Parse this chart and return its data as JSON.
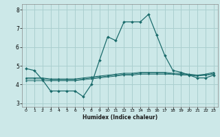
{
  "title": "",
  "xlabel": "Humidex (Indice chaleur)",
  "ylabel": "",
  "background_color": "#cce8e8",
  "grid_color": "#aacfcf",
  "line_color": "#1a6b6b",
  "xlim": [
    -0.5,
    23.5
  ],
  "ylim": [
    2.8,
    8.3
  ],
  "xticks": [
    0,
    1,
    2,
    3,
    4,
    5,
    6,
    7,
    8,
    9,
    10,
    11,
    12,
    13,
    14,
    15,
    16,
    17,
    18,
    19,
    20,
    21,
    22,
    23
  ],
  "yticks": [
    3,
    4,
    5,
    6,
    7,
    8
  ],
  "series1": {
    "x": [
      0,
      1,
      2,
      3,
      4,
      5,
      6,
      7,
      8,
      9,
      10,
      11,
      12,
      13,
      14,
      15,
      16,
      17,
      18,
      19,
      20,
      21,
      22,
      23
    ],
    "y": [
      4.85,
      4.75,
      4.25,
      3.65,
      3.65,
      3.65,
      3.65,
      3.35,
      4.0,
      5.3,
      6.55,
      6.35,
      7.35,
      7.35,
      7.35,
      7.75,
      6.65,
      5.55,
      4.75,
      4.65,
      4.5,
      4.35,
      4.35,
      4.5
    ]
  },
  "series2": {
    "x": [
      0,
      1,
      2,
      3,
      4,
      5,
      6,
      7,
      8,
      9,
      10,
      11,
      12,
      13,
      14,
      15,
      16,
      17,
      18,
      19,
      20,
      21,
      22,
      23
    ],
    "y": [
      4.2,
      4.2,
      4.2,
      4.2,
      4.2,
      4.2,
      4.2,
      4.25,
      4.3,
      4.35,
      4.4,
      4.45,
      4.5,
      4.5,
      4.55,
      4.55,
      4.55,
      4.55,
      4.55,
      4.5,
      4.5,
      4.45,
      4.5,
      4.55
    ]
  },
  "series3": {
    "x": [
      0,
      1,
      2,
      3,
      4,
      5,
      6,
      7,
      8,
      9,
      10,
      11,
      12,
      13,
      14,
      15,
      16,
      17,
      18,
      19,
      20,
      21,
      22,
      23
    ],
    "y": [
      4.3,
      4.3,
      4.3,
      4.25,
      4.25,
      4.25,
      4.25,
      4.3,
      4.35,
      4.4,
      4.45,
      4.5,
      4.55,
      4.55,
      4.6,
      4.6,
      4.6,
      4.6,
      4.55,
      4.55,
      4.5,
      4.5,
      4.5,
      4.6
    ]
  },
  "series4": {
    "x": [
      0,
      1,
      2,
      3,
      4,
      5,
      6,
      7,
      8,
      9,
      10,
      11,
      12,
      13,
      14,
      15,
      16,
      17,
      18,
      19,
      20,
      21,
      22,
      23
    ],
    "y": [
      4.35,
      4.35,
      4.35,
      4.3,
      4.3,
      4.3,
      4.3,
      4.35,
      4.4,
      4.45,
      4.5,
      4.55,
      4.6,
      4.6,
      4.65,
      4.65,
      4.65,
      4.65,
      4.6,
      4.6,
      4.55,
      4.5,
      4.55,
      4.65
    ]
  }
}
